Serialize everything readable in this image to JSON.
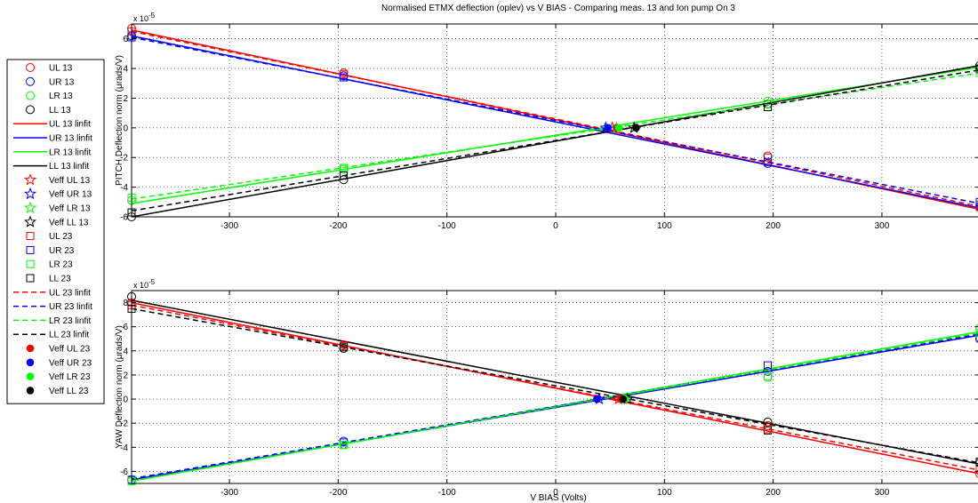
{
  "title": "Normalised ETMX deflection (oplev) vs V BIAS - Comparing meas. 13 and Ion pump On 3",
  "colors": {
    "UL": "#ff0000",
    "UR": "#0000ff",
    "LR": "#00ff00",
    "LL": "#000000"
  },
  "legend": {
    "entries": [
      {
        "label": "UL 13",
        "marker": "circle",
        "line": "none",
        "color": "UL"
      },
      {
        "label": "UR 13",
        "marker": "circle",
        "line": "none",
        "color": "UR"
      },
      {
        "label": "LR 13",
        "marker": "circle",
        "line": "none",
        "color": "LR"
      },
      {
        "label": "LL 13",
        "marker": "circle",
        "line": "none",
        "color": "LL"
      },
      {
        "label": "UL 13 linfit",
        "marker": "none",
        "line": "solid",
        "color": "UL"
      },
      {
        "label": "UR 13 linfit",
        "marker": "none",
        "line": "solid",
        "color": "UR"
      },
      {
        "label": "LR 13 linfit",
        "marker": "none",
        "line": "solid",
        "color": "LR"
      },
      {
        "label": "LL 13 linfit",
        "marker": "none",
        "line": "solid",
        "color": "LL"
      },
      {
        "label": "Veff UL 13",
        "marker": "star",
        "line": "none",
        "color": "UL"
      },
      {
        "label": "Veff UR 13",
        "marker": "star",
        "line": "none",
        "color": "UR"
      },
      {
        "label": "Veff LR 13",
        "marker": "star",
        "line": "none",
        "color": "LR"
      },
      {
        "label": "Veff LL 13",
        "marker": "star",
        "line": "none",
        "color": "LL"
      },
      {
        "label": "UL 23",
        "marker": "square",
        "line": "none",
        "color": "UL"
      },
      {
        "label": "UR 23",
        "marker": "square",
        "line": "none",
        "color": "UR"
      },
      {
        "label": "LR 23",
        "marker": "square",
        "line": "none",
        "color": "LR"
      },
      {
        "label": "LL 23",
        "marker": "square",
        "line": "none",
        "color": "LL"
      },
      {
        "label": "UL 23 linfit",
        "marker": "none",
        "line": "dashed",
        "color": "UL"
      },
      {
        "label": "UR 23 linfit",
        "marker": "none",
        "line": "dashed",
        "color": "UR"
      },
      {
        "label": "LR 23 linfit",
        "marker": "none",
        "line": "dashed",
        "color": "LR"
      },
      {
        "label": "LL 23 linfit",
        "marker": "none",
        "line": "dashed",
        "color": "LL"
      },
      {
        "label": "Veff UL 23",
        "marker": "dot",
        "line": "none",
        "color": "UL"
      },
      {
        "label": "Veff UR 23",
        "marker": "dot",
        "line": "none",
        "color": "UR"
      },
      {
        "label": "Veff LR 23",
        "marker": "dot",
        "line": "none",
        "color": "LR"
      },
      {
        "label": "Veff LL 23",
        "marker": "dot",
        "line": "none",
        "color": "LL"
      }
    ]
  },
  "chart_data": [
    {
      "type": "line",
      "name": "pitch",
      "xlim": [
        -390,
        390
      ],
      "ylim": [
        -6,
        7
      ],
      "xticks": [
        -300,
        -200,
        -100,
        0,
        100,
        200,
        300
      ],
      "yticks": [
        -6,
        -4,
        -2,
        0,
        2,
        4,
        6
      ],
      "exponent_label": "x 10",
      "exponent_power": "-5",
      "ylabel": "PITCH Deflection norm (μrads/V)",
      "xlabel": "",
      "grid": true,
      "series": [
        {
          "name": "UL 13",
          "color": "UL",
          "x": [
            -390,
            -195,
            195,
            390
          ],
          "y": [
            6.7,
            3.7,
            -1.9,
            -5.4
          ],
          "marker": "circle"
        },
        {
          "name": "UR 13",
          "color": "UR",
          "x": [
            -390,
            -195,
            195,
            390
          ],
          "y": [
            6.2,
            3.5,
            -2.4,
            -5.3
          ],
          "marker": "circle"
        },
        {
          "name": "LR 13",
          "color": "LR",
          "x": [
            -390,
            -195,
            195,
            390
          ],
          "y": [
            -4.9,
            -2.8,
            1.8,
            3.9
          ],
          "marker": "circle"
        },
        {
          "name": "LL 13",
          "color": "LL",
          "x": [
            -390,
            -195,
            195,
            390
          ],
          "y": [
            -6.0,
            -3.5,
            1.6,
            4.2
          ],
          "marker": "circle"
        },
        {
          "name": "UL 13 linfit",
          "color": "UL",
          "x": [
            -390,
            390
          ],
          "y": [
            6.6,
            -5.5
          ],
          "line": "solid"
        },
        {
          "name": "UR 13 linfit",
          "color": "UR",
          "x": [
            -390,
            390
          ],
          "y": [
            6.2,
            -5.4
          ],
          "line": "solid"
        },
        {
          "name": "LR 13 linfit",
          "color": "LR",
          "x": [
            -390,
            390
          ],
          "y": [
            -5.1,
            4.1
          ],
          "line": "solid"
        },
        {
          "name": "LL 13 linfit",
          "color": "LL",
          "x": [
            -390,
            390
          ],
          "y": [
            -6.0,
            4.2
          ],
          "line": "solid"
        },
        {
          "name": "Veff UL 13",
          "color": "UL",
          "x": [
            52
          ],
          "y": [
            0
          ],
          "marker": "star"
        },
        {
          "name": "Veff UR 13",
          "color": "UR",
          "x": [
            46
          ],
          "y": [
            0
          ],
          "marker": "star"
        },
        {
          "name": "Veff LR 13",
          "color": "LR",
          "x": [
            56
          ],
          "y": [
            0
          ],
          "marker": "star"
        },
        {
          "name": "Veff LL 13",
          "color": "LL",
          "x": [
            72
          ],
          "y": [
            0
          ],
          "marker": "star"
        },
        {
          "name": "UL 23",
          "color": "UL",
          "x": [
            -390,
            -195,
            195,
            390
          ],
          "y": [
            6.5,
            3.6,
            -2.0,
            -5.2
          ],
          "marker": "square"
        },
        {
          "name": "UR 23",
          "color": "UR",
          "x": [
            -390,
            -195,
            195,
            390
          ],
          "y": [
            6.1,
            3.4,
            -2.3,
            -5.0
          ],
          "marker": "square"
        },
        {
          "name": "LR 23",
          "color": "LR",
          "x": [
            -390,
            -195,
            195,
            390
          ],
          "y": [
            -4.7,
            -2.7,
            1.6,
            3.7
          ],
          "marker": "square"
        },
        {
          "name": "LL 23",
          "color": "LL",
          "x": [
            -390,
            -195,
            195,
            390
          ],
          "y": [
            -5.7,
            -3.2,
            1.4,
            4.0
          ],
          "marker": "square"
        },
        {
          "name": "UL 23 linfit",
          "color": "UL",
          "x": [
            -390,
            390
          ],
          "y": [
            6.5,
            -5.3
          ],
          "line": "dashed"
        },
        {
          "name": "UR 23 linfit",
          "color": "UR",
          "x": [
            -390,
            390
          ],
          "y": [
            6.1,
            -5.1
          ],
          "line": "dashed"
        },
        {
          "name": "LR 23 linfit",
          "color": "LR",
          "x": [
            -390,
            390
          ],
          "y": [
            -4.8,
            3.7
          ],
          "line": "dashed"
        },
        {
          "name": "LL 23 linfit",
          "color": "LL",
          "x": [
            -390,
            390
          ],
          "y": [
            -5.6,
            3.9
          ],
          "line": "dashed"
        },
        {
          "name": "Veff UL 23",
          "color": "UL",
          "x": [
            56
          ],
          "y": [
            0
          ],
          "marker": "dot"
        },
        {
          "name": "Veff UR 23",
          "color": "UR",
          "x": [
            48
          ],
          "y": [
            0
          ],
          "marker": "dot"
        },
        {
          "name": "Veff LR 23",
          "color": "LR",
          "x": [
            58
          ],
          "y": [
            0
          ],
          "marker": "dot"
        },
        {
          "name": "Veff LL 23",
          "color": "LL",
          "x": [
            74
          ],
          "y": [
            0
          ],
          "marker": "dot"
        }
      ]
    },
    {
      "type": "line",
      "name": "yaw",
      "xlim": [
        -390,
        390
      ],
      "ylim": [
        -7,
        9
      ],
      "xticks": [
        -300,
        -200,
        -100,
        0,
        100,
        200,
        300
      ],
      "yticks": [
        -6,
        -4,
        -2,
        0,
        2,
        4,
        6,
        8
      ],
      "exponent_label": "x 10",
      "exponent_power": "-5",
      "ylabel": "YAW Deflection norm (μrads/V)",
      "xlabel": "V BIAS (Volts)",
      "grid": true,
      "series": [
        {
          "name": "UL 13",
          "color": "UL",
          "x": [
            -390,
            -195,
            195,
            390
          ],
          "y": [
            8.0,
            4.5,
            -2.2,
            -6.2
          ],
          "marker": "circle"
        },
        {
          "name": "UR 13",
          "color": "UR",
          "x": [
            -390,
            -195,
            195,
            390
          ],
          "y": [
            -6.7,
            -3.5,
            2.3,
            5.0
          ],
          "marker": "circle"
        },
        {
          "name": "LR 13",
          "color": "LR",
          "x": [
            -390,
            -195,
            195,
            390
          ],
          "y": [
            -6.8,
            -3.8,
            1.8,
            5.9
          ],
          "marker": "circle"
        },
        {
          "name": "LL 13",
          "color": "LL",
          "x": [
            -390,
            -195,
            195,
            390
          ],
          "y": [
            8.5,
            4.2,
            -1.9,
            -5.3
          ],
          "marker": "circle"
        },
        {
          "name": "UL 13 linfit",
          "color": "UL",
          "x": [
            -390,
            390
          ],
          "y": [
            8.0,
            -6.2
          ],
          "line": "solid"
        },
        {
          "name": "UR 13 linfit",
          "color": "UR",
          "x": [
            -390,
            390
          ],
          "y": [
            -6.7,
            5.3
          ],
          "line": "solid"
        },
        {
          "name": "LR 13 linfit",
          "color": "LR",
          "x": [
            -390,
            390
          ],
          "y": [
            -6.8,
            5.6
          ],
          "line": "solid"
        },
        {
          "name": "LL 13 linfit",
          "color": "LL",
          "x": [
            -390,
            390
          ],
          "y": [
            8.2,
            -5.4
          ],
          "line": "solid"
        },
        {
          "name": "Veff UL 13",
          "color": "UL",
          "x": [
            58
          ],
          "y": [
            0
          ],
          "marker": "star"
        },
        {
          "name": "Veff UR 13",
          "color": "UR",
          "x": [
            40
          ],
          "y": [
            0
          ],
          "marker": "star"
        },
        {
          "name": "Veff LR 13",
          "color": "LR",
          "x": [
            62
          ],
          "y": [
            0
          ],
          "marker": "star"
        },
        {
          "name": "Veff LL 13",
          "color": "LL",
          "x": [
            66
          ],
          "y": [
            0
          ],
          "marker": "star"
        },
        {
          "name": "UL 23",
          "color": "UL",
          "x": [
            -390,
            -195,
            195,
            390
          ],
          "y": [
            7.8,
            4.4,
            -2.5,
            -5.8
          ],
          "marker": "square"
        },
        {
          "name": "UR 23",
          "color": "UR",
          "x": [
            -390,
            -195,
            195,
            390
          ],
          "y": [
            -6.7,
            -3.6,
            2.8,
            5.1
          ],
          "marker": "square"
        },
        {
          "name": "LR 23",
          "color": "LR",
          "x": [
            -390,
            -195,
            195,
            390
          ],
          "y": [
            -6.8,
            -3.8,
            1.9,
            5.5
          ],
          "marker": "square"
        },
        {
          "name": "LL 23",
          "color": "LL",
          "x": [
            -390,
            -195,
            195,
            390
          ],
          "y": [
            7.5,
            4.3,
            -2.6,
            -5.2
          ],
          "marker": "square"
        },
        {
          "name": "UL 23 linfit",
          "color": "UL",
          "x": [
            -390,
            390
          ],
          "y": [
            7.8,
            -5.9
          ],
          "line": "dashed"
        },
        {
          "name": "UR 23 linfit",
          "color": "UR",
          "x": [
            -390,
            390
          ],
          "y": [
            -6.6,
            5.4
          ],
          "line": "dashed"
        },
        {
          "name": "LR 23 linfit",
          "color": "LR",
          "x": [
            -390,
            390
          ],
          "y": [
            -6.8,
            5.5
          ],
          "line": "dashed"
        },
        {
          "name": "LL 23 linfit",
          "color": "LL",
          "x": [
            -390,
            390
          ],
          "y": [
            7.5,
            -5.3
          ],
          "line": "dashed"
        },
        {
          "name": "Veff UL 23",
          "color": "UL",
          "x": [
            60
          ],
          "y": [
            0
          ],
          "marker": "dot"
        },
        {
          "name": "Veff UR 23",
          "color": "UR",
          "x": [
            38
          ],
          "y": [
            0
          ],
          "marker": "dot"
        },
        {
          "name": "Veff LR 23",
          "color": "LR",
          "x": [
            64
          ],
          "y": [
            0
          ],
          "marker": "dot"
        },
        {
          "name": "Veff LL 23",
          "color": "LL",
          "x": [
            62
          ],
          "y": [
            0
          ],
          "marker": "dot"
        }
      ]
    }
  ]
}
